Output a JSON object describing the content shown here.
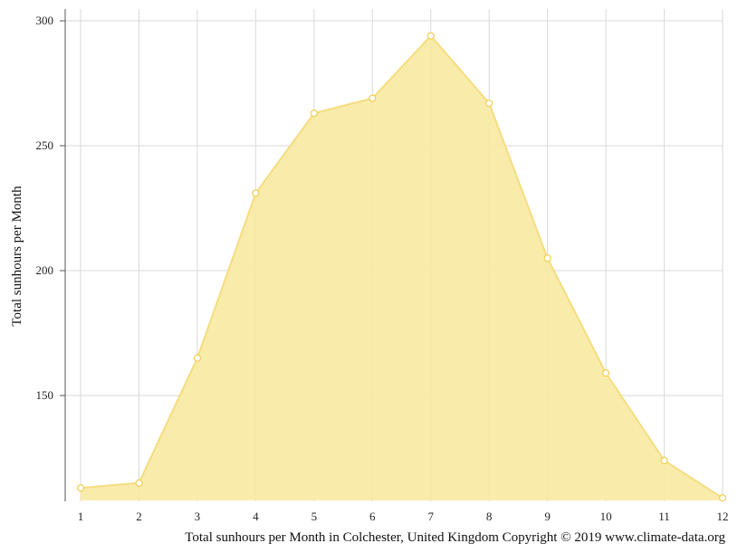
{
  "chart_data": {
    "type": "area",
    "x": [
      1,
      2,
      3,
      4,
      5,
      6,
      7,
      8,
      9,
      10,
      11,
      12
    ],
    "values": [
      113,
      115,
      165,
      231,
      263,
      269,
      294,
      267,
      205,
      159,
      124,
      109
    ],
    "ylabel": "Total sunhours per Month",
    "xlabel": "",
    "ylim": [
      108,
      303
    ],
    "yticks": [
      150,
      200,
      250,
      300
    ],
    "grid": true,
    "fill_color": "#f8e9a1",
    "line_color": "#f5dd80",
    "marker_color": "#ffffff"
  },
  "caption": "Total sunhours per Month in Colchester, United Kingdom Copyright © 2019 www.climate-data.org"
}
